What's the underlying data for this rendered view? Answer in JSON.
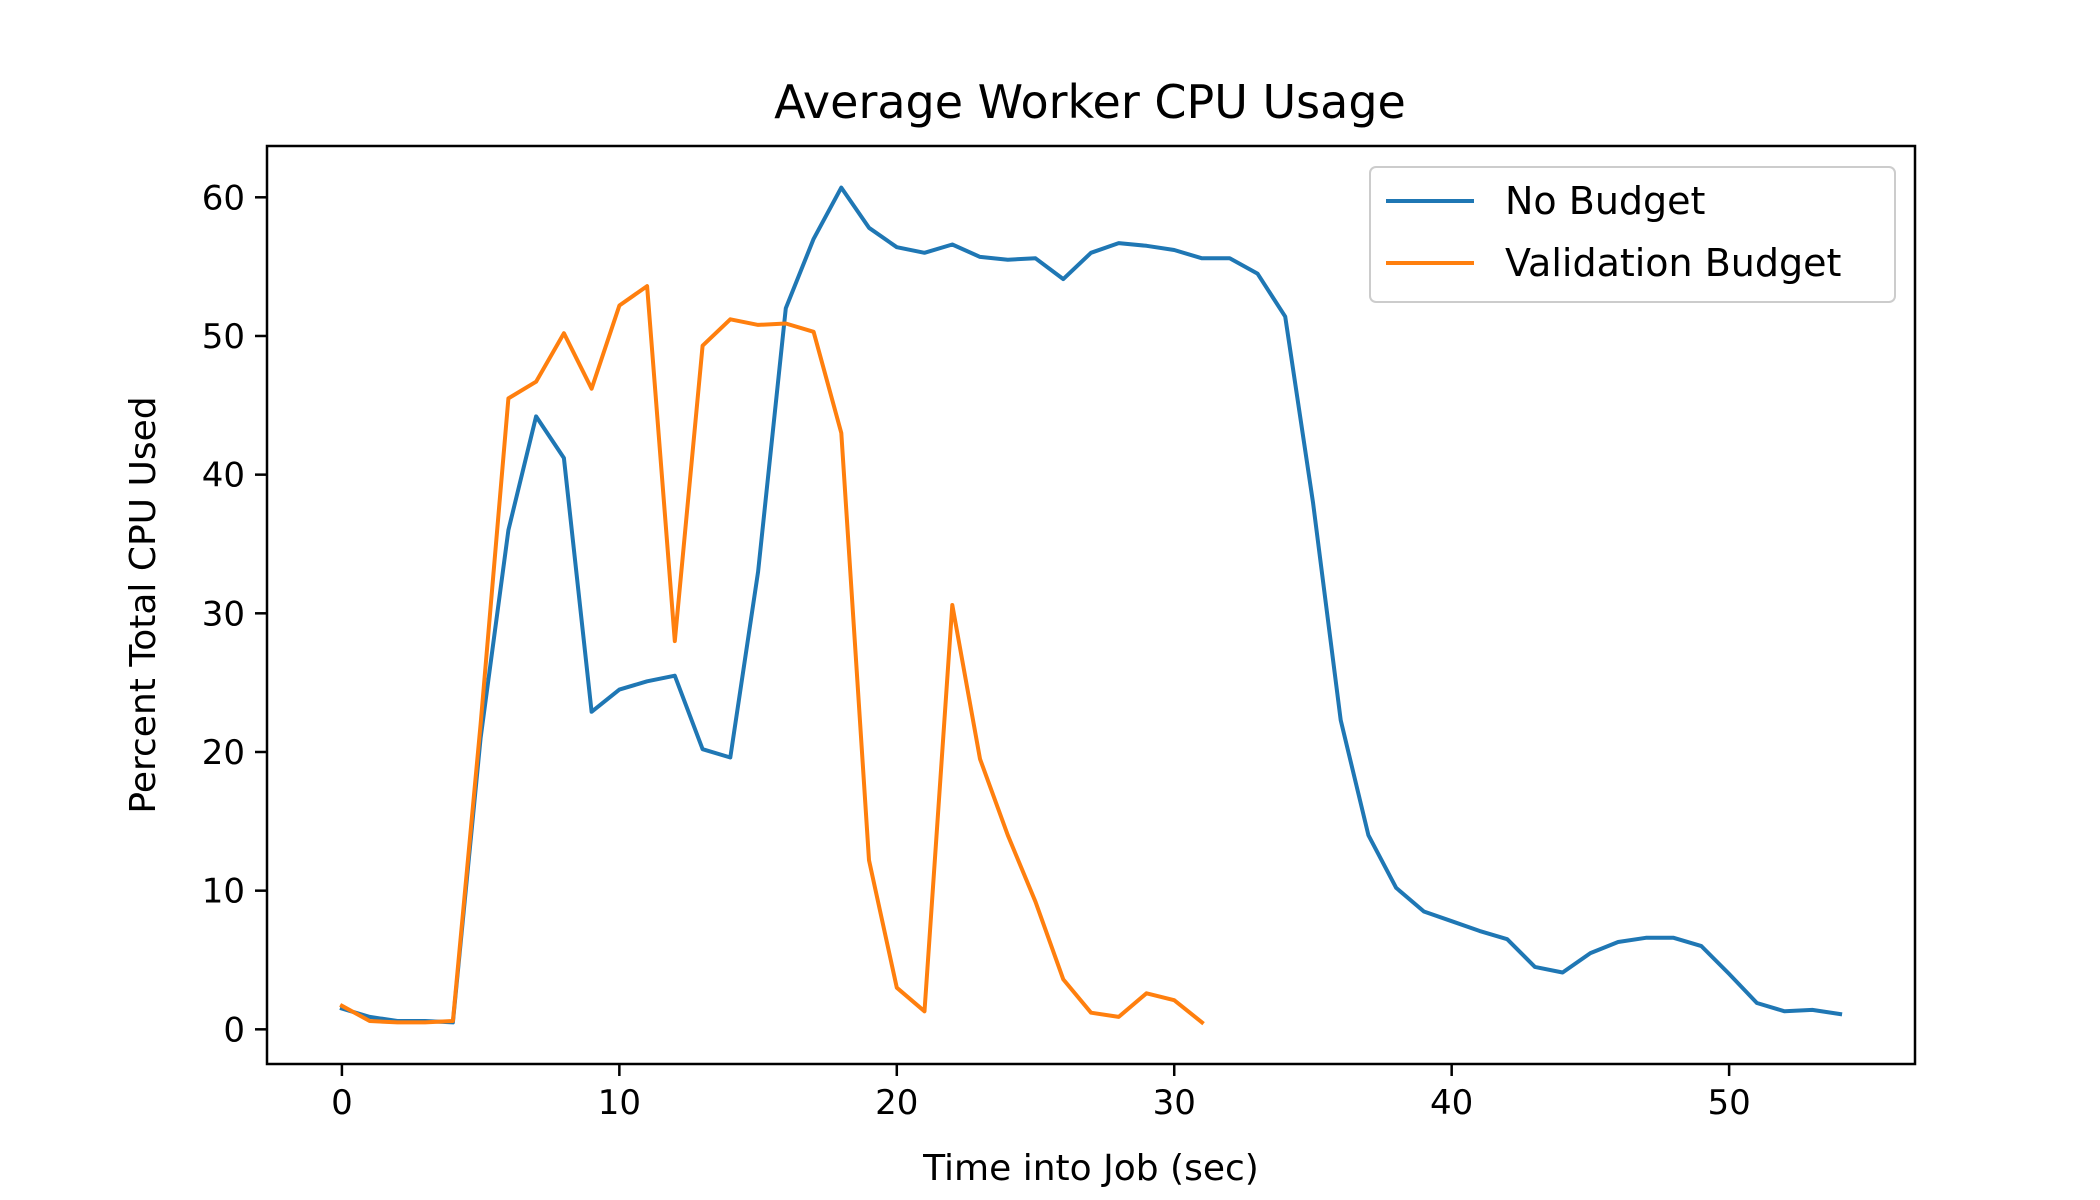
{
  "chart_data": {
    "type": "line",
    "title": "Average Worker CPU Usage",
    "xlabel": "Time into Job (sec)",
    "ylabel": "Percent Total CPU Used",
    "xlim": [
      -2.7,
      56.7
    ],
    "ylim": [
      -2.5,
      63.7
    ],
    "xticks": [
      0,
      10,
      20,
      30,
      40,
      50
    ],
    "yticks": [
      0,
      10,
      20,
      30,
      40,
      50,
      60
    ],
    "grid": false,
    "legend_position": "top-right",
    "series": [
      {
        "name": "No Budget",
        "color": "#1f77b4",
        "x": [
          0,
          1,
          2,
          3,
          4,
          5,
          6,
          7,
          8,
          9,
          10,
          11,
          12,
          13,
          14,
          15,
          16,
          17,
          18,
          19,
          20,
          21,
          22,
          23,
          24,
          25,
          26,
          27,
          28,
          29,
          30,
          31,
          32,
          33,
          34,
          35,
          36,
          37,
          38,
          39,
          40,
          41,
          42,
          43,
          44,
          45,
          46,
          47,
          48,
          49,
          50,
          51,
          52,
          53,
          54
        ],
        "y": [
          1.5,
          0.9,
          0.6,
          0.6,
          0.5,
          21.0,
          36.0,
          44.2,
          41.2,
          22.9,
          24.5,
          25.1,
          25.5,
          20.2,
          19.6,
          33.0,
          52.0,
          57.0,
          60.7,
          57.8,
          56.4,
          56.0,
          56.6,
          55.7,
          55.5,
          55.6,
          54.1,
          56.0,
          56.7,
          56.5,
          56.2,
          55.6,
          55.6,
          54.5,
          51.4,
          38.0,
          22.3,
          14.0,
          10.2,
          8.5,
          7.8,
          7.1,
          6.5,
          4.5,
          4.1,
          5.5,
          6.3,
          6.6,
          6.6,
          6.0,
          4.0,
          1.9,
          1.3,
          1.4,
          1.1
        ]
      },
      {
        "name": "Validation Budget",
        "color": "#ff7f0e",
        "x": [
          0,
          1,
          2,
          3,
          4,
          5,
          6,
          7,
          8,
          9,
          10,
          11,
          12,
          13,
          14,
          15,
          16,
          17,
          18,
          19,
          20,
          21,
          22,
          23,
          24,
          25,
          26,
          27,
          28,
          29,
          30,
          31
        ],
        "y": [
          1.7,
          0.6,
          0.5,
          0.5,
          0.6,
          22.0,
          45.5,
          46.7,
          50.2,
          46.2,
          52.2,
          53.6,
          28.0,
          49.3,
          51.2,
          50.8,
          50.9,
          50.3,
          43.0,
          12.2,
          3.0,
          1.3,
          30.6,
          19.5,
          14.0,
          9.2,
          3.6,
          1.2,
          0.9,
          2.6,
          2.1,
          0.5
        ]
      }
    ]
  }
}
